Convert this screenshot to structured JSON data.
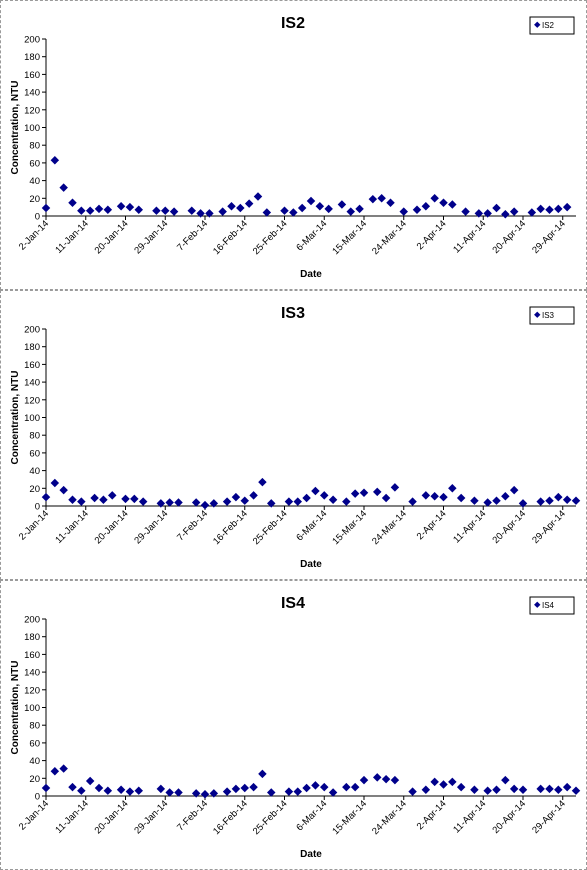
{
  "chart_data": [
    {
      "type": "scatter",
      "title": "IS2",
      "xlabel": "Date",
      "ylabel": "Concentration, NTU",
      "ylim": [
        0,
        200
      ],
      "yticks": [
        0,
        20,
        40,
        60,
        80,
        100,
        120,
        140,
        160,
        180,
        200
      ],
      "xlim": [
        "2-Jan-14",
        "2-May-14"
      ],
      "xticks": [
        "2-Jan-14",
        "11-Jan-14",
        "20-Jan-14",
        "29-Jan-14",
        "7-Feb-14",
        "16-Feb-14",
        "25-Feb-14",
        "6-Mar-14",
        "15-Mar-14",
        "24-Mar-14",
        "2-Apr-14",
        "11-Apr-14",
        "20-Apr-14",
        "29-Apr-14"
      ],
      "legend": "top-right",
      "grid": false,
      "marker_color": "#00008B",
      "series": [
        {
          "name": "IS2",
          "points": [
            [
              "2-Jan-14",
              9
            ],
            [
              "4-Jan-14",
              63
            ],
            [
              "6-Jan-14",
              32
            ],
            [
              "8-Jan-14",
              15
            ],
            [
              "10-Jan-14",
              6
            ],
            [
              "12-Jan-14",
              6
            ],
            [
              "14-Jan-14",
              8
            ],
            [
              "16-Jan-14",
              7
            ],
            [
              "19-Jan-14",
              11
            ],
            [
              "21-Jan-14",
              10
            ],
            [
              "23-Jan-14",
              7
            ],
            [
              "27-Jan-14",
              6
            ],
            [
              "29-Jan-14",
              6
            ],
            [
              "31-Jan-14",
              5
            ],
            [
              "4-Feb-14",
              6
            ],
            [
              "6-Feb-14",
              3
            ],
            [
              "8-Feb-14",
              3
            ],
            [
              "11-Feb-14",
              5
            ],
            [
              "13-Feb-14",
              11
            ],
            [
              "15-Feb-14",
              9
            ],
            [
              "17-Feb-14",
              14
            ],
            [
              "19-Feb-14",
              22
            ],
            [
              "21-Feb-14",
              4
            ],
            [
              "25-Feb-14",
              6
            ],
            [
              "27-Feb-14",
              4
            ],
            [
              "1-Mar-14",
              9
            ],
            [
              "3-Mar-14",
              17
            ],
            [
              "5-Mar-14",
              11
            ],
            [
              "7-Mar-14",
              8
            ],
            [
              "10-Mar-14",
              13
            ],
            [
              "12-Mar-14",
              5
            ],
            [
              "14-Mar-14",
              8
            ],
            [
              "17-Mar-14",
              19
            ],
            [
              "19-Mar-14",
              20
            ],
            [
              "21-Mar-14",
              15
            ],
            [
              "24-Mar-14",
              5
            ],
            [
              "27-Mar-14",
              7
            ],
            [
              "29-Mar-14",
              11
            ],
            [
              "31-Mar-14",
              20
            ],
            [
              "2-Apr-14",
              15
            ],
            [
              "4-Apr-14",
              13
            ],
            [
              "7-Apr-14",
              5
            ],
            [
              "10-Apr-14",
              3
            ],
            [
              "12-Apr-14",
              3
            ],
            [
              "14-Apr-14",
              9
            ],
            [
              "16-Apr-14",
              2
            ],
            [
              "18-Apr-14",
              5
            ],
            [
              "22-Apr-14",
              4
            ],
            [
              "24-Apr-14",
              8
            ],
            [
              "26-Apr-14",
              7
            ],
            [
              "28-Apr-14",
              8
            ],
            [
              "30-Apr-14",
              10
            ]
          ]
        }
      ]
    },
    {
      "type": "scatter",
      "title": "IS3",
      "xlabel": "Date",
      "ylabel": "Concentration, NTU",
      "ylim": [
        0,
        200
      ],
      "yticks": [
        0,
        20,
        40,
        60,
        80,
        100,
        120,
        140,
        160,
        180,
        200
      ],
      "xlim": [
        "2-Jan-14",
        "2-May-14"
      ],
      "xticks": [
        "2-Jan-14",
        "11-Jan-14",
        "20-Jan-14",
        "29-Jan-14",
        "7-Feb-14",
        "16-Feb-14",
        "25-Feb-14",
        "6-Mar-14",
        "15-Mar-14",
        "24-Mar-14",
        "2-Apr-14",
        "11-Apr-14",
        "20-Apr-14",
        "29-Apr-14"
      ],
      "legend": "top-right",
      "grid": false,
      "marker_color": "#00008B",
      "series": [
        {
          "name": "IS3",
          "points": [
            [
              "2-Jan-14",
              10
            ],
            [
              "4-Jan-14",
              26
            ],
            [
              "6-Jan-14",
              18
            ],
            [
              "8-Jan-14",
              7
            ],
            [
              "10-Jan-14",
              5
            ],
            [
              "13-Jan-14",
              9
            ],
            [
              "15-Jan-14",
              7
            ],
            [
              "17-Jan-14",
              12
            ],
            [
              "20-Jan-14",
              8
            ],
            [
              "22-Jan-14",
              8
            ],
            [
              "24-Jan-14",
              5
            ],
            [
              "28-Jan-14",
              3
            ],
            [
              "30-Jan-14",
              4
            ],
            [
              "1-Feb-14",
              4
            ],
            [
              "5-Feb-14",
              4
            ],
            [
              "7-Feb-14",
              1
            ],
            [
              "9-Feb-14",
              3
            ],
            [
              "12-Feb-14",
              5
            ],
            [
              "14-Feb-14",
              10
            ],
            [
              "16-Feb-14",
              6
            ],
            [
              "18-Feb-14",
              12
            ],
            [
              "20-Feb-14",
              27
            ],
            [
              "22-Feb-14",
              3
            ],
            [
              "26-Feb-14",
              5
            ],
            [
              "28-Feb-14",
              5
            ],
            [
              "2-Mar-14",
              9
            ],
            [
              "4-Mar-14",
              17
            ],
            [
              "6-Mar-14",
              12
            ],
            [
              "8-Mar-14",
              7
            ],
            [
              "11-Mar-14",
              5
            ],
            [
              "13-Mar-14",
              14
            ],
            [
              "15-Mar-14",
              15
            ],
            [
              "18-Mar-14",
              16
            ],
            [
              "20-Mar-14",
              9
            ],
            [
              "22-Mar-14",
              21
            ],
            [
              "26-Mar-14",
              5
            ],
            [
              "29-Mar-14",
              12
            ],
            [
              "31-Mar-14",
              11
            ],
            [
              "2-Apr-14",
              10
            ],
            [
              "4-Apr-14",
              20
            ],
            [
              "6-Apr-14",
              9
            ],
            [
              "9-Apr-14",
              6
            ],
            [
              "12-Apr-14",
              4
            ],
            [
              "14-Apr-14",
              6
            ],
            [
              "16-Apr-14",
              11
            ],
            [
              "18-Apr-14",
              18
            ],
            [
              "20-Apr-14",
              3
            ],
            [
              "24-Apr-14",
              5
            ],
            [
              "26-Apr-14",
              6
            ],
            [
              "28-Apr-14",
              10
            ],
            [
              "30-Apr-14",
              7
            ],
            [
              "2-May-14",
              6
            ]
          ]
        }
      ]
    },
    {
      "type": "scatter",
      "title": "IS4",
      "xlabel": "Date",
      "ylabel": "Concentration, NTU",
      "ylim": [
        0,
        200
      ],
      "yticks": [
        0,
        20,
        40,
        60,
        80,
        100,
        120,
        140,
        160,
        180,
        200
      ],
      "xlim": [
        "2-Jan-14",
        "2-May-14"
      ],
      "xticks": [
        "2-Jan-14",
        "11-Jan-14",
        "20-Jan-14",
        "29-Jan-14",
        "7-Feb-14",
        "16-Feb-14",
        "25-Feb-14",
        "6-Mar-14",
        "15-Mar-14",
        "24-Mar-14",
        "2-Apr-14",
        "11-Apr-14",
        "20-Apr-14",
        "29-Apr-14"
      ],
      "legend": "top-right",
      "grid": false,
      "marker_color": "#00008B",
      "series": [
        {
          "name": "IS4",
          "points": [
            [
              "2-Jan-14",
              9
            ],
            [
              "4-Jan-14",
              28
            ],
            [
              "6-Jan-14",
              31
            ],
            [
              "8-Jan-14",
              10
            ],
            [
              "10-Jan-14",
              6
            ],
            [
              "12-Jan-14",
              17
            ],
            [
              "14-Jan-14",
              9
            ],
            [
              "16-Jan-14",
              6
            ],
            [
              "19-Jan-14",
              7
            ],
            [
              "21-Jan-14",
              5
            ],
            [
              "23-Jan-14",
              6
            ],
            [
              "28-Jan-14",
              8
            ],
            [
              "30-Jan-14",
              4
            ],
            [
              "1-Feb-14",
              4
            ],
            [
              "5-Feb-14",
              3
            ],
            [
              "7-Feb-14",
              2
            ],
            [
              "9-Feb-14",
              3
            ],
            [
              "12-Feb-14",
              5
            ],
            [
              "14-Feb-14",
              8
            ],
            [
              "16-Feb-14",
              9
            ],
            [
              "18-Feb-14",
              10
            ],
            [
              "20-Feb-14",
              25
            ],
            [
              "22-Feb-14",
              4
            ],
            [
              "26-Feb-14",
              5
            ],
            [
              "28-Feb-14",
              5
            ],
            [
              "2-Mar-14",
              9
            ],
            [
              "4-Mar-14",
              12
            ],
            [
              "6-Mar-14",
              10
            ],
            [
              "8-Mar-14",
              4
            ],
            [
              "11-Mar-14",
              10
            ],
            [
              "13-Mar-14",
              10
            ],
            [
              "15-Mar-14",
              18
            ],
            [
              "18-Mar-14",
              21
            ],
            [
              "20-Mar-14",
              19
            ],
            [
              "22-Mar-14",
              18
            ],
            [
              "26-Mar-14",
              5
            ],
            [
              "29-Mar-14",
              7
            ],
            [
              "31-Mar-14",
              16
            ],
            [
              "2-Apr-14",
              13
            ],
            [
              "4-Apr-14",
              16
            ],
            [
              "6-Apr-14",
              10
            ],
            [
              "9-Apr-14",
              7
            ],
            [
              "12-Apr-14",
              6
            ],
            [
              "14-Apr-14",
              7
            ],
            [
              "16-Apr-14",
              18
            ],
            [
              "18-Apr-14",
              8
            ],
            [
              "20-Apr-14",
              7
            ],
            [
              "24-Apr-14",
              8
            ],
            [
              "26-Apr-14",
              8
            ],
            [
              "28-Apr-14",
              7
            ],
            [
              "30-Apr-14",
              10
            ],
            [
              "2-May-14",
              6
            ]
          ]
        }
      ]
    }
  ]
}
